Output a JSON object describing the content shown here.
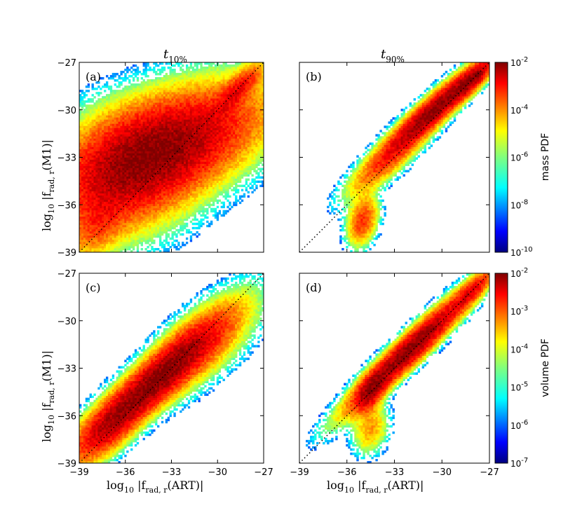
{
  "chart_data": [
    {
      "id": "a",
      "type": "heatmap",
      "panel_label": "(a)",
      "column_title": "t",
      "column_subscript": "10%",
      "ylabel": "log10 |f_rad,r(M1)|",
      "xlim": [
        -39,
        -27
      ],
      "ylim": [
        -39,
        -27
      ],
      "yticks": [
        "-39",
        "-36",
        "-33",
        "-30",
        "-27"
      ],
      "xticks": [],
      "colorbar": "mass",
      "blobs": [
        {
          "x": -33.0,
          "y": -32.2,
          "sx": 4.0,
          "sy": 2.4,
          "rho": 0.55,
          "w": 1.0
        },
        {
          "x": -36.0,
          "y": -34.0,
          "sx": 3.0,
          "sy": 2.6,
          "rho": 0.25,
          "w": 0.55
        },
        {
          "x": -38.0,
          "y": -37.5,
          "sx": 1.2,
          "sy": 1.3,
          "rho": 0.4,
          "w": 0.3
        },
        {
          "x": -28.5,
          "y": -28.5,
          "sx": 1.0,
          "sy": 1.0,
          "rho": 0.8,
          "w": 0.5
        }
      ]
    },
    {
      "id": "b",
      "type": "heatmap",
      "panel_label": "(b)",
      "column_title": "t",
      "column_subscript": "90%",
      "xlim": [
        -39,
        -27
      ],
      "ylim": [
        -39,
        -27
      ],
      "yticks": [],
      "xticks": [],
      "colorbar": "mass",
      "blobs": [
        {
          "x": -30.5,
          "y": -30.0,
          "sx": 2.0,
          "sy": 1.8,
          "rho": 0.93,
          "w": 1.0
        },
        {
          "x": -33.5,
          "y": -33.3,
          "sx": 1.6,
          "sy": 1.4,
          "rho": 0.85,
          "w": 0.35
        },
        {
          "x": -35.0,
          "y": -37.0,
          "sx": 0.6,
          "sy": 1.0,
          "rho": 0.3,
          "w": 0.45
        },
        {
          "x": -28.0,
          "y": -28.0,
          "sx": 0.8,
          "sy": 0.8,
          "rho": 0.8,
          "w": 0.6
        }
      ]
    },
    {
      "id": "c",
      "type": "heatmap",
      "panel_label": "(c)",
      "xlabel": "log10 |f_rad,r(ART)|",
      "ylabel": "log10 |f_rad,r(M1)|",
      "xlim": [
        -39,
        -27
      ],
      "ylim": [
        -39,
        -27
      ],
      "yticks": [
        "-39",
        "-36",
        "-33",
        "-30",
        "-27"
      ],
      "xticks": [
        "-39",
        "-36",
        "-33",
        "-30",
        "-27"
      ],
      "colorbar": "volume",
      "blobs": [
        {
          "x": -34.5,
          "y": -34.2,
          "sx": 2.6,
          "sy": 2.4,
          "rho": 0.9,
          "w": 1.0
        },
        {
          "x": -31.0,
          "y": -31.5,
          "sx": 2.2,
          "sy": 2.0,
          "rho": 0.7,
          "w": 0.4
        },
        {
          "x": -37.5,
          "y": -37.0,
          "sx": 1.4,
          "sy": 1.4,
          "rho": 0.6,
          "w": 0.35
        }
      ]
    },
    {
      "id": "d",
      "type": "heatmap",
      "panel_label": "(d)",
      "xlabel": "log10 |f_rad,r(ART)|",
      "xlim": [
        -39,
        -27
      ],
      "ylim": [
        -39,
        -27
      ],
      "yticks": [],
      "xticks": [
        "-39",
        "-36",
        "-33",
        "-30",
        "-27"
      ],
      "colorbar": "volume",
      "blobs": [
        {
          "x": -32.0,
          "y": -31.8,
          "sx": 2.4,
          "sy": 2.3,
          "rho": 0.95,
          "w": 1.0
        },
        {
          "x": -34.5,
          "y": -34.5,
          "sx": 0.6,
          "sy": 0.8,
          "rho": 0.5,
          "w": 0.5
        },
        {
          "x": -34.5,
          "y": -36.8,
          "sx": 0.7,
          "sy": 1.0,
          "rho": 0.2,
          "w": 0.25
        },
        {
          "x": -28.0,
          "y": -28.0,
          "sx": 0.8,
          "sy": 0.8,
          "rho": 0.8,
          "w": 0.4
        }
      ]
    }
  ],
  "colorbars": {
    "mass": {
      "label": "mass PDF",
      "ticks": [
        {
          "base": "10",
          "exp": "-2"
        },
        {
          "base": "10",
          "exp": "-4"
        },
        {
          "base": "10",
          "exp": "-6"
        },
        {
          "base": "10",
          "exp": "-8"
        },
        {
          "base": "10",
          "exp": "-10"
        }
      ]
    },
    "volume": {
      "label": "volume PDF",
      "ticks": [
        {
          "base": "10",
          "exp": "-2"
        },
        {
          "base": "10",
          "exp": "-3"
        },
        {
          "base": "10",
          "exp": "-4"
        },
        {
          "base": "10",
          "exp": "-5"
        },
        {
          "base": "10",
          "exp": "-6"
        },
        {
          "base": "10",
          "exp": "-7"
        }
      ]
    }
  },
  "labels": {
    "ylabel_log": "log",
    "ylabel_log_sub": "10",
    "ylabel_rest": " |f",
    "ylabel_sub": "rad, r",
    "ylabel_arg": "(M1)|",
    "xlabel_arg": "(ART)|"
  }
}
